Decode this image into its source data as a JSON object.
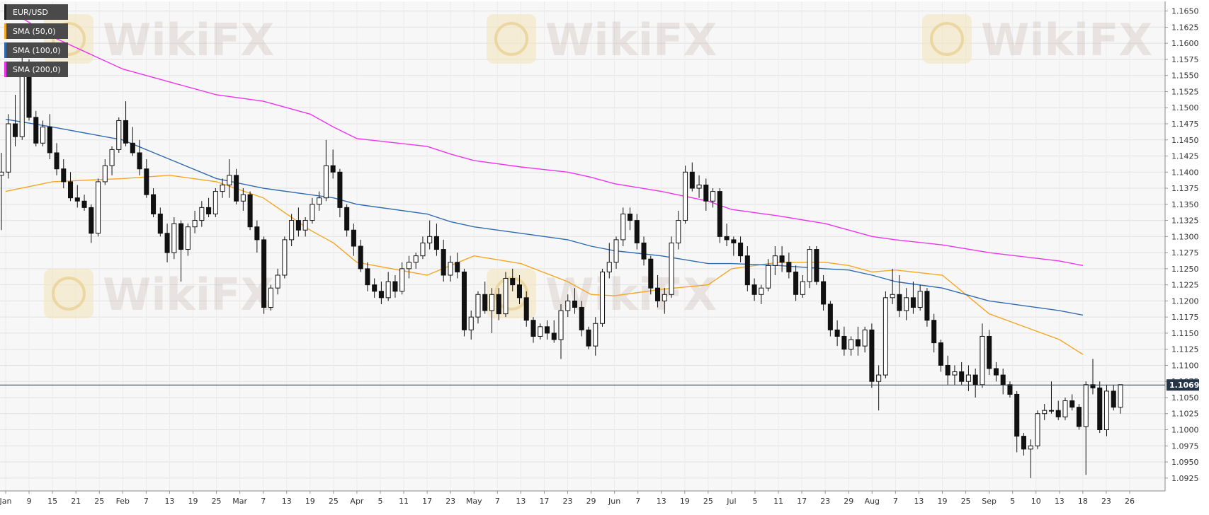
{
  "legend": [
    {
      "label": "EUR/USD",
      "color": "#222222"
    },
    {
      "label": "SMA (50,0)",
      "color": "#f5a623"
    },
    {
      "label": "SMA (100,0)",
      "color": "#2e6bb0"
    },
    {
      "label": "SMA (200,0)",
      "color": "#ee33ee"
    }
  ],
  "last_price_label": "1.10695",
  "watermark_text": "WikiFX",
  "chart_data": {
    "type": "candlestick",
    "title": "",
    "y_ticks": [
      "1.0925",
      "1.0950",
      "1.0975",
      "1.1000",
      "1.1025",
      "1.1050",
      "1.1075",
      "1.1100",
      "1.1125",
      "1.1150",
      "1.1175",
      "1.1200",
      "1.1225",
      "1.1250",
      "1.1275",
      "1.1300",
      "1.1325",
      "1.1350",
      "1.1375",
      "1.1400",
      "1.1425",
      "1.1450",
      "1.1475",
      "1.1500",
      "1.1525",
      "1.1550",
      "1.1575",
      "1.1600",
      "1.1625",
      "1.1650"
    ],
    "ylim": [
      1.0905,
      1.1665
    ],
    "x_tick_labels": [
      "Jan",
      "9",
      "15",
      "21",
      "25",
      "Feb",
      "7",
      "13",
      "19",
      "25",
      "Mar",
      "7",
      "13",
      "19",
      "25",
      "Apr",
      "5",
      "11",
      "17",
      "23",
      "May",
      "7",
      "13",
      "17",
      "23",
      "29",
      "Jun",
      "7",
      "13",
      "19",
      "25",
      "Jul",
      "5",
      "11",
      "17",
      "23",
      "29",
      "Aug",
      "7",
      "13",
      "19",
      "25",
      "Sep",
      "5",
      "10",
      "13",
      "18",
      "23",
      "26"
    ],
    "last_price": 1.10695,
    "series": [
      {
        "name": "SMA (50,0)",
        "color": "#f5a623",
        "points": [
          [
            "Jan",
            1.137
          ],
          [
            "15",
            1.1385
          ],
          [
            "Feb",
            1.139
          ],
          [
            "13",
            1.1395
          ],
          [
            "25",
            1.1385
          ],
          [
            "7",
            1.136
          ],
          [
            "19",
            1.131
          ],
          [
            "25",
            1.129
          ],
          [
            "Apr",
            1.126
          ],
          [
            "17",
            1.124
          ],
          [
            "23",
            1.1255
          ],
          [
            "May",
            1.127
          ],
          [
            "13",
            1.1258
          ],
          [
            "23",
            1.123
          ],
          [
            "29",
            1.121
          ],
          [
            "Jun",
            1.1208
          ],
          [
            "13",
            1.1218
          ],
          [
            "25",
            1.1225
          ],
          [
            "Jul",
            1.125
          ],
          [
            "11",
            1.126
          ],
          [
            "23",
            1.126
          ],
          [
            "29",
            1.1255
          ],
          [
            "Aug",
            1.1245
          ],
          [
            "7",
            1.1248
          ],
          [
            "19",
            1.124
          ],
          [
            "Sep",
            1.118
          ],
          [
            "13",
            1.114
          ],
          [
            "18",
            1.1117
          ]
        ]
      },
      {
        "name": "SMA (100,0)",
        "color": "#2e6bb0",
        "points": [
          [
            "Jan",
            1.1482
          ],
          [
            "15",
            1.147
          ],
          [
            "Feb",
            1.145
          ],
          [
            "13",
            1.142
          ],
          [
            "25",
            1.139
          ],
          [
            "7",
            1.1375
          ],
          [
            "19",
            1.1365
          ],
          [
            "25",
            1.136
          ],
          [
            "Apr",
            1.135
          ],
          [
            "17",
            1.1335
          ],
          [
            "23",
            1.1323
          ],
          [
            "May",
            1.1315
          ],
          [
            "13",
            1.1305
          ],
          [
            "23",
            1.1295
          ],
          [
            "29",
            1.1285
          ],
          [
            "Jun",
            1.1278
          ],
          [
            "13",
            1.127
          ],
          [
            "25",
            1.1258
          ],
          [
            "Jul",
            1.1258
          ],
          [
            "11",
            1.1255
          ],
          [
            "23",
            1.125
          ],
          [
            "29",
            1.1248
          ],
          [
            "Aug",
            1.124
          ],
          [
            "7",
            1.123
          ],
          [
            "19",
            1.122
          ],
          [
            "Sep",
            1.12
          ],
          [
            "13",
            1.1185
          ],
          [
            "18",
            1.1178
          ]
        ]
      },
      {
        "name": "SMA (200,0)",
        "color": "#ee33ee",
        "points": [
          [
            "Jan",
            1.1655
          ],
          [
            "15",
            1.161
          ],
          [
            "Feb",
            1.156
          ],
          [
            "13",
            1.154
          ],
          [
            "25",
            1.152
          ],
          [
            "7",
            1.151
          ],
          [
            "19",
            1.149
          ],
          [
            "25",
            1.147
          ],
          [
            "Apr",
            1.1452
          ],
          [
            "17",
            1.144
          ],
          [
            "23",
            1.1428
          ],
          [
            "May",
            1.1418
          ],
          [
            "13",
            1.1408
          ],
          [
            "23",
            1.14
          ],
          [
            "29",
            1.1392
          ],
          [
            "Jun",
            1.1382
          ],
          [
            "13",
            1.137
          ],
          [
            "25",
            1.1355
          ],
          [
            "Jul",
            1.1342
          ],
          [
            "11",
            1.1332
          ],
          [
            "23",
            1.132
          ],
          [
            "29",
            1.131
          ],
          [
            "Aug",
            1.13
          ],
          [
            "7",
            1.1295
          ],
          [
            "19",
            1.1287
          ],
          [
            "Sep",
            1.1275
          ],
          [
            "13",
            1.1262
          ],
          [
            "18",
            1.1255
          ]
        ]
      }
    ],
    "candles": [
      [
        1.1395,
        1.143,
        1.131,
        1.14
      ],
      [
        1.14,
        1.149,
        1.139,
        1.1475
      ],
      [
        1.1475,
        1.152,
        1.144,
        1.1455
      ],
      [
        1.1455,
        1.16,
        1.145,
        1.156
      ],
      [
        1.156,
        1.1575,
        1.148,
        1.1485
      ],
      [
        1.1485,
        1.1495,
        1.144,
        1.1445
      ],
      [
        1.1445,
        1.148,
        1.144,
        1.147
      ],
      [
        1.147,
        1.149,
        1.142,
        1.143
      ],
      [
        1.143,
        1.1445,
        1.1395,
        1.1405
      ],
      [
        1.1405,
        1.142,
        1.1375,
        1.1385
      ],
      [
        1.1385,
        1.14,
        1.1355,
        1.136
      ],
      [
        1.136,
        1.138,
        1.1345,
        1.1355
      ],
      [
        1.1355,
        1.1365,
        1.134,
        1.1345
      ],
      [
        1.1345,
        1.135,
        1.129,
        1.1305
      ],
      [
        1.1305,
        1.139,
        1.13,
        1.1385
      ],
      [
        1.1385,
        1.142,
        1.138,
        1.141
      ],
      [
        1.141,
        1.144,
        1.1395,
        1.1435
      ],
      [
        1.1435,
        1.1485,
        1.143,
        1.148
      ],
      [
        1.148,
        1.151,
        1.144,
        1.1445
      ],
      [
        1.1445,
        1.147,
        1.1425,
        1.143
      ],
      [
        1.143,
        1.145,
        1.1395,
        1.1405
      ],
      [
        1.1405,
        1.142,
        1.136,
        1.1365
      ],
      [
        1.1365,
        1.1375,
        1.133,
        1.1335
      ],
      [
        1.1335,
        1.1345,
        1.13,
        1.1305
      ],
      [
        1.1305,
        1.132,
        1.126,
        1.1275
      ],
      [
        1.1275,
        1.133,
        1.1265,
        1.132
      ],
      [
        1.132,
        1.1325,
        1.123,
        1.128
      ],
      [
        1.128,
        1.132,
        1.127,
        1.1315
      ],
      [
        1.1315,
        1.134,
        1.1305,
        1.1325
      ],
      [
        1.1325,
        1.1355,
        1.1315,
        1.1345
      ],
      [
        1.1345,
        1.136,
        1.133,
        1.1335
      ],
      [
        1.1335,
        1.1375,
        1.133,
        1.137
      ],
      [
        1.137,
        1.139,
        1.136,
        1.138
      ],
      [
        1.138,
        1.142,
        1.136,
        1.1395
      ],
      [
        1.1395,
        1.1405,
        1.135,
        1.1355
      ],
      [
        1.1355,
        1.1375,
        1.134,
        1.1365
      ],
      [
        1.1365,
        1.137,
        1.131,
        1.1315
      ],
      [
        1.1315,
        1.1325,
        1.1275,
        1.1295
      ],
      [
        1.1295,
        1.13,
        1.118,
        1.119
      ],
      [
        1.119,
        1.1225,
        1.1185,
        1.122
      ],
      [
        1.122,
        1.125,
        1.121,
        1.124
      ],
      [
        1.124,
        1.13,
        1.1235,
        1.1295
      ],
      [
        1.1295,
        1.1335,
        1.1285,
        1.1325
      ],
      [
        1.1325,
        1.1345,
        1.13,
        1.131
      ],
      [
        1.131,
        1.133,
        1.13,
        1.1325
      ],
      [
        1.1325,
        1.136,
        1.132,
        1.135
      ],
      [
        1.135,
        1.137,
        1.134,
        1.136
      ],
      [
        1.136,
        1.145,
        1.1355,
        1.141
      ],
      [
        1.141,
        1.1435,
        1.139,
        1.14
      ],
      [
        1.14,
        1.1405,
        1.133,
        1.1345
      ],
      [
        1.1345,
        1.135,
        1.13,
        1.131
      ],
      [
        1.131,
        1.132,
        1.127,
        1.1285
      ],
      [
        1.1285,
        1.1295,
        1.1245,
        1.125
      ],
      [
        1.125,
        1.126,
        1.1215,
        1.1225
      ],
      [
        1.1225,
        1.1235,
        1.1205,
        1.1215
      ],
      [
        1.1215,
        1.123,
        1.1195,
        1.1205
      ],
      [
        1.1205,
        1.1245,
        1.12,
        1.123
      ],
      [
        1.123,
        1.124,
        1.1205,
        1.1215
      ],
      [
        1.1215,
        1.126,
        1.121,
        1.125
      ],
      [
        1.125,
        1.127,
        1.1235,
        1.126
      ],
      [
        1.126,
        1.1275,
        1.125,
        1.127
      ],
      [
        1.127,
        1.13,
        1.1265,
        1.129
      ],
      [
        1.129,
        1.1325,
        1.128,
        1.13
      ],
      [
        1.13,
        1.132,
        1.127,
        1.128
      ],
      [
        1.128,
        1.1295,
        1.123,
        1.124
      ],
      [
        1.124,
        1.127,
        1.123,
        1.126
      ],
      [
        1.126,
        1.1275,
        1.1235,
        1.1245
      ],
      [
        1.1245,
        1.125,
        1.1145,
        1.1155
      ],
      [
        1.1155,
        1.1185,
        1.114,
        1.1175
      ],
      [
        1.1175,
        1.1215,
        1.1165,
        1.121
      ],
      [
        1.121,
        1.123,
        1.118,
        1.1185
      ],
      [
        1.1185,
        1.122,
        1.115,
        1.121
      ],
      [
        1.121,
        1.122,
        1.117,
        1.118
      ],
      [
        1.118,
        1.1245,
        1.1175,
        1.1235
      ],
      [
        1.1235,
        1.125,
        1.1215,
        1.1225
      ],
      [
        1.1225,
        1.124,
        1.1195,
        1.1205
      ],
      [
        1.1205,
        1.1215,
        1.116,
        1.117
      ],
      [
        1.117,
        1.1175,
        1.1135,
        1.1145
      ],
      [
        1.1145,
        1.1165,
        1.114,
        1.116
      ],
      [
        1.116,
        1.117,
        1.114,
        1.115
      ],
      [
        1.115,
        1.117,
        1.1135,
        1.114
      ],
      [
        1.114,
        1.1195,
        1.111,
        1.1185
      ],
      [
        1.1185,
        1.121,
        1.1175,
        1.12
      ],
      [
        1.12,
        1.122,
        1.118,
        1.119
      ],
      [
        1.119,
        1.12,
        1.1145,
        1.1155
      ],
      [
        1.1155,
        1.116,
        1.1125,
        1.113
      ],
      [
        1.113,
        1.1175,
        1.1115,
        1.1165
      ],
      [
        1.1165,
        1.125,
        1.116,
        1.1245
      ],
      [
        1.1245,
        1.129,
        1.1235,
        1.126
      ],
      [
        1.126,
        1.13,
        1.125,
        1.1295
      ],
      [
        1.1295,
        1.1345,
        1.1285,
        1.1335
      ],
      [
        1.1335,
        1.1345,
        1.131,
        1.1325
      ],
      [
        1.1325,
        1.1335,
        1.128,
        1.129
      ],
      [
        1.129,
        1.13,
        1.1255,
        1.1265
      ],
      [
        1.1265,
        1.127,
        1.121,
        1.122
      ],
      [
        1.122,
        1.124,
        1.119,
        1.12
      ],
      [
        1.12,
        1.122,
        1.118,
        1.121
      ],
      [
        1.121,
        1.13,
        1.1205,
        1.129
      ],
      [
        1.129,
        1.134,
        1.128,
        1.1325
      ],
      [
        1.1325,
        1.141,
        1.132,
        1.14
      ],
      [
        1.14,
        1.1415,
        1.137,
        1.1375
      ],
      [
        1.1375,
        1.1395,
        1.136,
        1.138
      ],
      [
        1.138,
        1.139,
        1.134,
        1.1355
      ],
      [
        1.1355,
        1.1375,
        1.1345,
        1.137
      ],
      [
        1.137,
        1.1375,
        1.129,
        1.13
      ],
      [
        1.13,
        1.132,
        1.1285,
        1.1295
      ],
      [
        1.1295,
        1.13,
        1.127,
        1.129
      ],
      [
        1.129,
        1.13,
        1.126,
        1.127
      ],
      [
        1.127,
        1.1285,
        1.1215,
        1.1225
      ],
      [
        1.1225,
        1.1235,
        1.12,
        1.121
      ],
      [
        1.121,
        1.1225,
        1.1195,
        1.122
      ],
      [
        1.122,
        1.1265,
        1.1215,
        1.1255
      ],
      [
        1.1255,
        1.1285,
        1.124,
        1.127
      ],
      [
        1.127,
        1.1285,
        1.1245,
        1.126
      ],
      [
        1.126,
        1.1275,
        1.1235,
        1.1245
      ],
      [
        1.1245,
        1.1255,
        1.12,
        1.121
      ],
      [
        1.121,
        1.124,
        1.1205,
        1.123
      ],
      [
        1.123,
        1.1285,
        1.122,
        1.128
      ],
      [
        1.128,
        1.1285,
        1.1225,
        1.123
      ],
      [
        1.123,
        1.124,
        1.1185,
        1.1195
      ],
      [
        1.1195,
        1.12,
        1.1145,
        1.1155
      ],
      [
        1.1155,
        1.117,
        1.113,
        1.1145
      ],
      [
        1.1145,
        1.116,
        1.1115,
        1.1125
      ],
      [
        1.1125,
        1.1145,
        1.1115,
        1.114
      ],
      [
        1.114,
        1.116,
        1.1115,
        1.113
      ],
      [
        1.113,
        1.116,
        1.112,
        1.1155
      ],
      [
        1.1155,
        1.1165,
        1.1065,
        1.1075
      ],
      [
        1.1075,
        1.11,
        1.103,
        1.1085
      ],
      [
        1.1085,
        1.1215,
        1.108,
        1.1205
      ],
      [
        1.1205,
        1.125,
        1.1195,
        1.121
      ],
      [
        1.121,
        1.124,
        1.1175,
        1.1185
      ],
      [
        1.1185,
        1.122,
        1.117,
        1.1205
      ],
      [
        1.1205,
        1.123,
        1.118,
        1.119
      ],
      [
        1.119,
        1.1225,
        1.1185,
        1.1215
      ],
      [
        1.1215,
        1.122,
        1.116,
        1.117
      ],
      [
        1.117,
        1.118,
        1.112,
        1.1135
      ],
      [
        1.1135,
        1.114,
        1.109,
        1.11
      ],
      [
        1.11,
        1.1115,
        1.107,
        1.1085
      ],
      [
        1.1085,
        1.11,
        1.107,
        1.109
      ],
      [
        1.109,
        1.1105,
        1.107,
        1.1075
      ],
      [
        1.1075,
        1.11,
        1.106,
        1.1085
      ],
      [
        1.1085,
        1.1095,
        1.105,
        1.107
      ],
      [
        1.107,
        1.1165,
        1.1065,
        1.1145
      ],
      [
        1.1145,
        1.1155,
        1.1085,
        1.1095
      ],
      [
        1.1095,
        1.1105,
        1.1075,
        1.1085
      ],
      [
        1.1085,
        1.1095,
        1.1055,
        1.107
      ],
      [
        1.107,
        1.1075,
        1.105,
        1.1055
      ],
      [
        1.1055,
        1.106,
        1.0965,
        1.099
      ],
      [
        1.099,
        1.0995,
        1.096,
        1.097
      ],
      [
        1.097,
        1.0985,
        1.0925,
        1.0975
      ],
      [
        1.0975,
        1.103,
        1.097,
        1.1025
      ],
      [
        1.1025,
        1.104,
        1.1015,
        1.103
      ],
      [
        1.103,
        1.1075,
        1.1025,
        1.103
      ],
      [
        1.103,
        1.1045,
        1.1015,
        1.102
      ],
      [
        1.102,
        1.105,
        1.1015,
        1.1045
      ],
      [
        1.1045,
        1.1055,
        1.103,
        1.1035
      ],
      [
        1.1035,
        1.104,
        1.1,
        1.1005
      ],
      [
        1.1005,
        1.1075,
        1.093,
        1.107
      ],
      [
        1.107,
        1.111,
        1.1055,
        1.1065
      ],
      [
        1.1065,
        1.1075,
        1.0995,
        1.1
      ],
      [
        1.1,
        1.107,
        1.099,
        1.106
      ],
      [
        1.106,
        1.107,
        1.103,
        1.1035
      ],
      [
        1.1035,
        1.107,
        1.1025,
        1.107
      ]
    ]
  }
}
